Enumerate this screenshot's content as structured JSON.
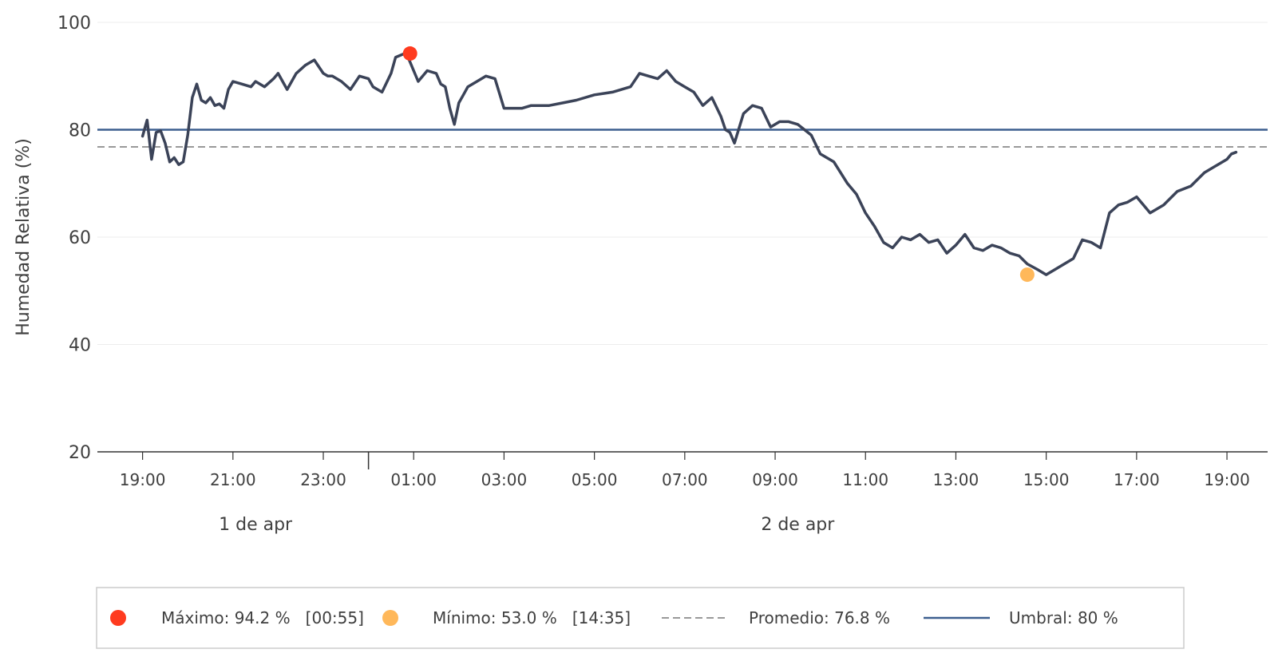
{
  "chart_data": {
    "type": "line",
    "ylabel": "Humedad Relativa (%)",
    "ylim": [
      20,
      100
    ],
    "yticks": [
      "20",
      "40",
      "60",
      "80",
      "100"
    ],
    "xlim": [
      18.0,
      43.9
    ],
    "xticks": [
      {
        "value": 19,
        "label": "19:00"
      },
      {
        "value": 21,
        "label": "21:00"
      },
      {
        "value": 23,
        "label": "23:00"
      },
      {
        "value": 25,
        "label": "01:00"
      },
      {
        "value": 27,
        "label": "03:00"
      },
      {
        "value": 29,
        "label": "05:00"
      },
      {
        "value": 31,
        "label": "07:00"
      },
      {
        "value": 33,
        "label": "09:00"
      },
      {
        "value": 35,
        "label": "11:00"
      },
      {
        "value": 37,
        "label": "13:00"
      },
      {
        "value": 39,
        "label": "15:00"
      },
      {
        "value": 41,
        "label": "17:00"
      },
      {
        "value": 43,
        "label": "19:00"
      }
    ],
    "day_separator": 24,
    "day_labels": [
      {
        "value": 21.5,
        "label": "1 de apr"
      },
      {
        "value": 33.5,
        "label": "2 de apr"
      }
    ],
    "grid": true,
    "series": [
      {
        "color": "#3b4358",
        "x": [
          19.0,
          19.1,
          19.2,
          19.3,
          19.4,
          19.5,
          19.6,
          19.7,
          19.8,
          19.9,
          20.0,
          20.1,
          20.2,
          20.3,
          20.4,
          20.5,
          20.6,
          20.7,
          20.8,
          20.9,
          21.0,
          21.2,
          21.4,
          21.5,
          21.7,
          21.9,
          22.0,
          22.2,
          22.4,
          22.6,
          22.8,
          23.0,
          23.1,
          23.2,
          23.4,
          23.6,
          23.8,
          24.0,
          24.1,
          24.3,
          24.5,
          24.6,
          24.8,
          24.9,
          25.0,
          25.1,
          25.3,
          25.5,
          25.6,
          25.7,
          25.8,
          25.9,
          26.0,
          26.1,
          26.2,
          26.4,
          26.6,
          26.8,
          27.0,
          27.2,
          27.4,
          27.6,
          27.8,
          28.0,
          28.3,
          28.6,
          29.0,
          29.4,
          29.8,
          30.0,
          30.2,
          30.4,
          30.6,
          30.8,
          31.0,
          31.2,
          31.4,
          31.6,
          31.8,
          31.9,
          32.0,
          32.1,
          32.3,
          32.5,
          32.7,
          32.9,
          33.1,
          33.3,
          33.5,
          33.8,
          34.0,
          34.3,
          34.6,
          34.8,
          35.0,
          35.2,
          35.4,
          35.6,
          35.8,
          36.0,
          36.2,
          36.4,
          36.6,
          36.8,
          37.0,
          37.2,
          37.4,
          37.6,
          37.8,
          38.0,
          38.2,
          38.4,
          38.58,
          38.8,
          39.0,
          39.2,
          39.4,
          39.6,
          39.8,
          40.0,
          40.2,
          40.4,
          40.6,
          40.8,
          41.0,
          41.3,
          41.6,
          41.9,
          42.2,
          42.5,
          42.8,
          43.0,
          43.1,
          43.2
        ],
        "y": [
          78.8,
          81.8,
          74.5,
          79.5,
          79.8,
          77.5,
          74.0,
          74.8,
          73.5,
          74.0,
          79.0,
          86.0,
          88.5,
          85.5,
          85.0,
          86.0,
          84.5,
          84.8,
          84.0,
          87.5,
          89.0,
          88.5,
          88.0,
          89.0,
          88.0,
          89.5,
          90.5,
          87.5,
          90.5,
          92.0,
          93.0,
          90.5,
          90.0,
          90.0,
          89.0,
          87.5,
          90.0,
          89.5,
          88.0,
          87.0,
          90.5,
          93.5,
          94.2,
          93.0,
          91.0,
          89.0,
          91.0,
          90.5,
          88.5,
          88.0,
          84.0,
          81.0,
          85.0,
          86.5,
          88.0,
          89.0,
          90.0,
          89.5,
          84.0,
          84.0,
          84.0,
          84.5,
          84.5,
          84.5,
          85.0,
          85.5,
          86.5,
          87.0,
          88.0,
          90.5,
          90.0,
          89.5,
          91.0,
          89.0,
          88.0,
          87.0,
          84.5,
          86.0,
          82.5,
          80.0,
          79.5,
          77.5,
          83.0,
          84.5,
          84.0,
          80.5,
          81.5,
          81.5,
          81.0,
          79.0,
          75.5,
          74.0,
          70.0,
          68.0,
          64.5,
          62.0,
          59.0,
          58.0,
          60.0,
          59.5,
          60.5,
          59.0,
          59.5,
          57.0,
          58.5,
          60.5,
          58.0,
          57.5,
          58.5,
          58.0,
          57.0,
          56.5,
          55.0,
          54.0,
          53.0,
          54.0,
          55.0,
          56.0,
          59.5,
          59.0,
          58.0,
          64.5,
          66.0,
          66.5,
          67.5,
          64.5,
          66.0,
          68.5,
          69.5,
          72.0,
          73.5,
          74.5,
          75.5,
          75.8
        ]
      }
    ],
    "max_point": {
      "x": 24.92,
      "y": 94.2,
      "color": "#ff3b1f"
    },
    "min_point": {
      "x": 38.58,
      "y": 53.0,
      "color": "#ffb85a"
    },
    "average": {
      "value": 76.8,
      "color": "#999999"
    },
    "threshold": {
      "value": 80,
      "color": "#3d5f8f"
    },
    "legend": {
      "placement": "bottom",
      "max_label": "Máximo: 94.2 %   [00:55]",
      "min_label": "Mínimo: 53.0 %   [14:35]",
      "avg_label": "Promedio: 76.8 %",
      "threshold_label": "Umbral: 80 %"
    }
  }
}
